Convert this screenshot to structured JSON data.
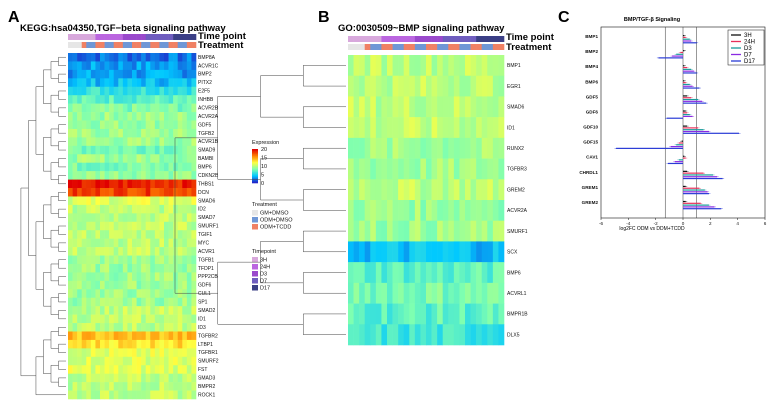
{
  "panels": {
    "A": {
      "letter": "A",
      "title": "KEGG:hsa04350,TGF−beta signaling pathway",
      "annotation_labels": [
        "Time point",
        "Treatment"
      ],
      "genes": [
        "BMP8A",
        "ACVR1C",
        "BMP2",
        "PITX2",
        "E2F5",
        "INHBB",
        "ACVR2B",
        "ACVR2A",
        "GDF5",
        "TGFB2",
        "ACVR1B",
        "SMAD9",
        "BAMBI",
        "BMP6",
        "CDKN2B",
        "THBS1",
        "DCN",
        "SMAD6",
        "ID2",
        "SMAD7",
        "SMURF1",
        "TGIF1",
        "MYC",
        "ACVR1",
        "TGFB1",
        "TFDP1",
        "PPP2CB",
        "GDF6",
        "CUL1",
        "SP1",
        "SMAD2",
        "ID1",
        "ID3",
        "TGFBR2",
        "LTBP1",
        "TGFBR1",
        "SMURF2",
        "FST",
        "SMAD3",
        "BMPR2",
        "ROCK1"
      ],
      "row_levels": [
        2,
        3,
        3,
        4,
        6,
        7,
        8,
        9,
        9,
        9,
        9,
        8,
        9,
        8,
        9,
        19,
        18,
        11,
        10,
        10,
        10,
        10,
        10,
        10,
        9,
        9,
        9,
        9,
        9,
        9,
        10,
        10,
        10,
        14,
        13,
        11,
        11,
        11,
        10,
        10,
        10
      ]
    },
    "B": {
      "letter": "B",
      "title": "GO:0030509~BMP signaling pathway",
      "annotation_labels": [
        "Time point",
        "Treatment"
      ],
      "genes": [
        "BMP1",
        "EGR1",
        "SMAD6",
        "ID1",
        "RUNX2",
        "TGFBR3",
        "GREM2",
        "ACVR2A",
        "SMURF1",
        "SCX",
        "BMP6",
        "ACVRL1",
        "BMPR1B",
        "DLX5"
      ],
      "row_levels": [
        10,
        10,
        10,
        10,
        9,
        9,
        10,
        9,
        9,
        4,
        7,
        8,
        7,
        6
      ]
    },
    "C": {
      "letter": "C"
    }
  },
  "legend": {
    "expression": {
      "title": "Expression",
      "ticks": [
        "20",
        "15",
        "10",
        "5",
        "0"
      ]
    },
    "treatment": {
      "title": "Treatment",
      "items": [
        {
          "label": "GM+DMSO",
          "color": "#e6e6e6"
        },
        {
          "label": "ODM+DMSO",
          "color": "#6f97d6"
        },
        {
          "label": "ODM+TCDD",
          "color": "#f08164"
        }
      ]
    },
    "timepoint": {
      "title": "Timepoint",
      "items": [
        {
          "label": "3H",
          "color": "#d8a8dc"
        },
        {
          "label": "24H",
          "color": "#bb66e0"
        },
        {
          "label": "D3",
          "color": "#9a49cc"
        },
        {
          "label": "D7",
          "color": "#6f5dbf"
        },
        {
          "label": "D17",
          "color": "#3b3f86"
        }
      ]
    }
  },
  "chart_data": [
    {
      "type": "heatmap",
      "title": "KEGG:hsa04350,TGF−beta signaling pathway",
      "color_scale": {
        "min": 0,
        "max": 20,
        "colors": [
          "#2020c8",
          "#00c8ff",
          "#7fffb0",
          "#ffff40",
          "#ff8000",
          "#e00000"
        ]
      }
    },
    {
      "type": "heatmap",
      "title": "GO:0030509~BMP signaling pathway"
    },
    {
      "type": "bar",
      "orientation": "horizontal",
      "title": "BMP/TGF-β Signaling",
      "xlabel": "log2FC ODM vs DDM+TCDD",
      "xlim": [
        -6,
        6
      ],
      "xticks": [
        "-6",
        "-4",
        "-2",
        "0",
        "2",
        "4",
        "6"
      ],
      "reference_lines": [
        -1.3,
        0,
        1
      ],
      "categories": [
        "BMP1",
        "BMP2",
        "BMP4",
        "BMP6",
        "GDF5",
        "GDF6",
        "GDF10",
        "GDF15",
        "CAV1",
        "CHRDL1",
        "GREM1",
        "GREM2"
      ],
      "series": [
        {
          "name": "3H",
          "color": "#111111",
          "values": [
            0.1,
            0.1,
            0.1,
            0.1,
            0.3,
            0.2,
            0.3,
            -0.1,
            0.1,
            0.3,
            0.2,
            0.2
          ]
        },
        {
          "name": "24H",
          "color": "#e8305a",
          "values": [
            0.2,
            -0.2,
            0.3,
            0.2,
            0.6,
            0.3,
            1.1,
            -0.3,
            0.2,
            1.5,
            1.2,
            1.3
          ]
        },
        {
          "name": "D3",
          "color": "#1a9b9b",
          "values": [
            0.5,
            -0.5,
            0.6,
            0.5,
            1.1,
            0.5,
            1.5,
            -0.5,
            -0.3,
            2.2,
            1.6,
            1.9
          ]
        },
        {
          "name": "D7",
          "color": "#8a2be2",
          "values": [
            0.6,
            -0.8,
            0.8,
            0.7,
            1.4,
            0.7,
            1.9,
            -0.9,
            -0.6,
            2.5,
            1.8,
            2.3
          ]
        },
        {
          "name": "D17",
          "color": "#2a3bd6",
          "values": [
            1.0,
            -1.8,
            1.0,
            1.2,
            1.7,
            -1.2,
            4.1,
            -4.9,
            -1.1,
            2.9,
            1.9,
            2.8
          ]
        }
      ],
      "legend": {
        "position": "top-right"
      }
    }
  ]
}
